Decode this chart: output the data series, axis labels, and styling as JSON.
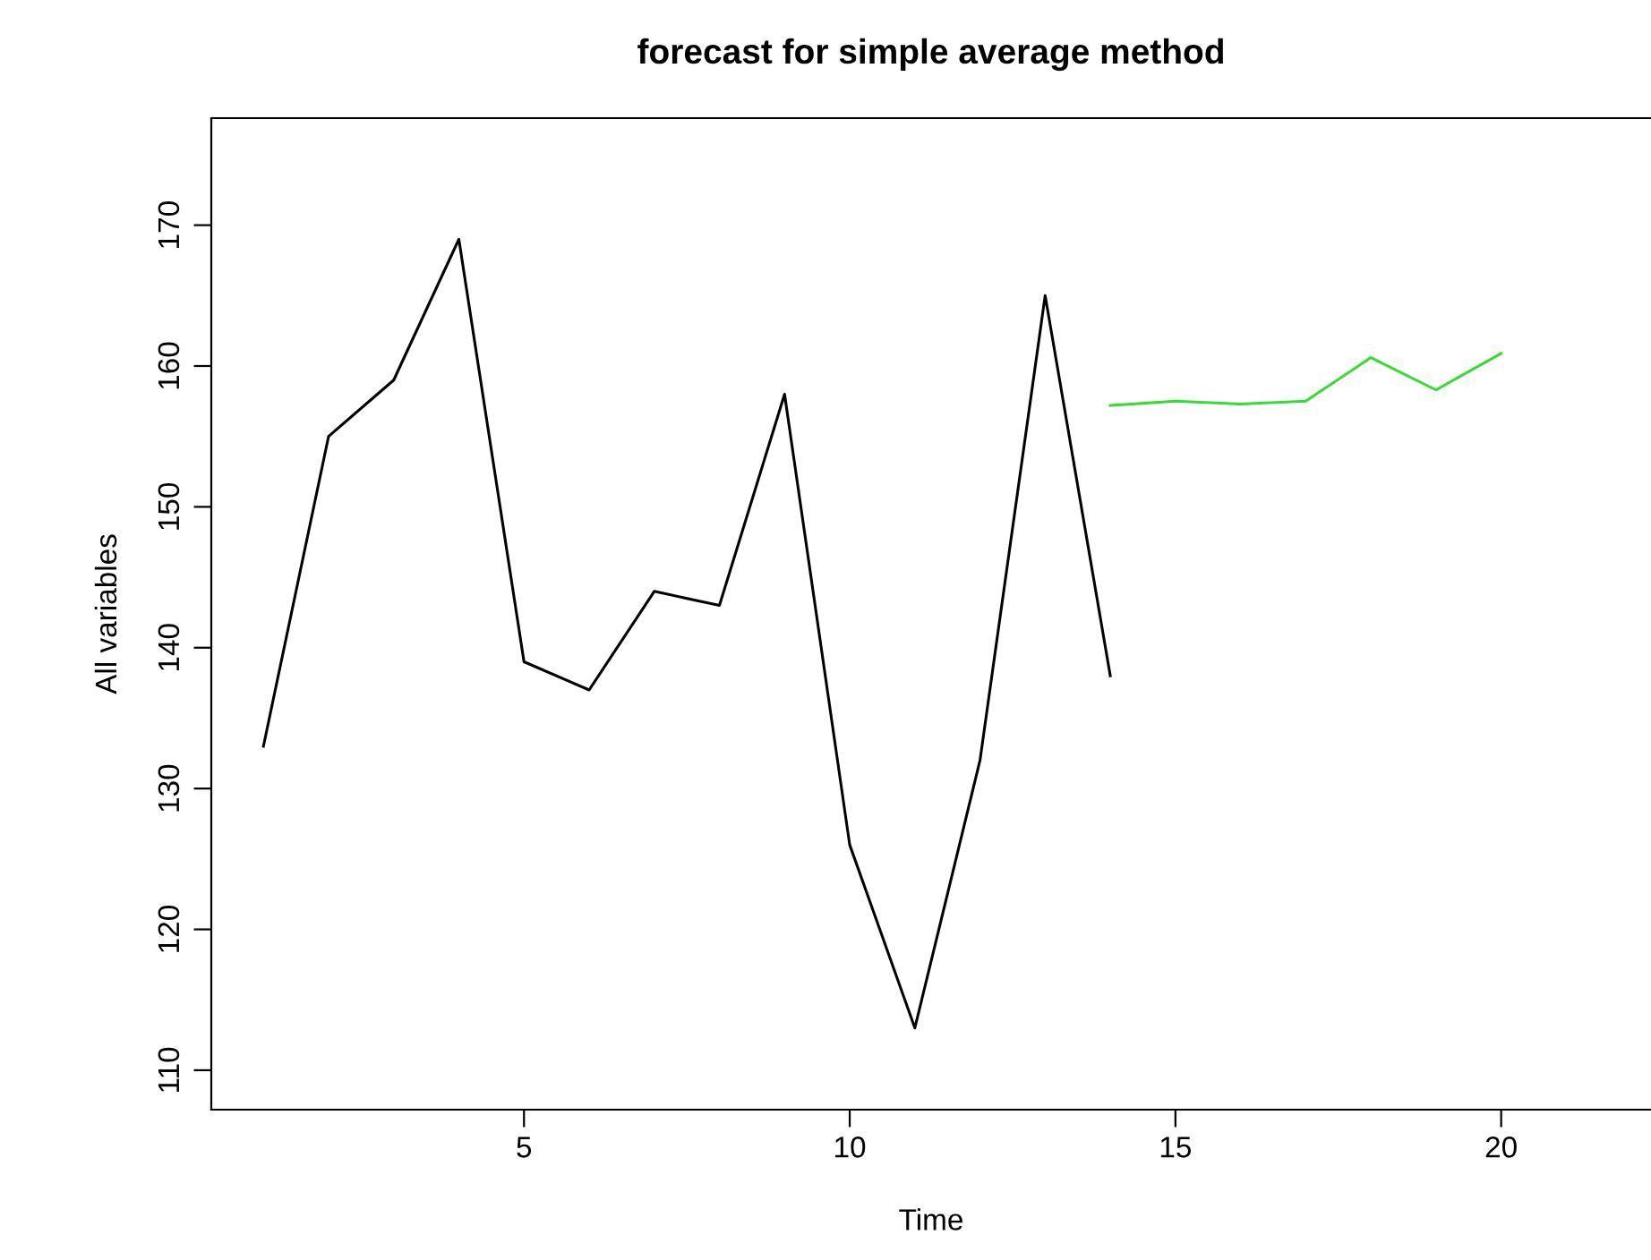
{
  "chart_data": {
    "type": "line",
    "title": "forecast for simple average method",
    "xlabel": "Time",
    "ylabel": "All variables",
    "series": [
      {
        "color": "#000000",
        "x": [
          1,
          2,
          3,
          4,
          5,
          6,
          7,
          8,
          9,
          10,
          11,
          12,
          13,
          14
        ],
        "values": [
          133,
          155,
          159,
          169,
          139,
          137,
          144,
          143,
          158,
          126,
          113,
          132,
          165,
          138
        ]
      },
      {
        "color": "#33dd33",
        "x": [
          14,
          15,
          16,
          17,
          18,
          19,
          20
        ],
        "values": [
          157.2,
          157.5,
          157.3,
          157.5,
          160.6,
          158.3,
          160.9
        ]
      }
    ],
    "xlim": [
      0.2,
      22.3
    ],
    "ylim": [
      107.2,
      177.6
    ],
    "xticks": [
      5,
      10,
      15,
      20
    ],
    "yticks": [
      110,
      120,
      130,
      140,
      150,
      160,
      170
    ],
    "grid": false,
    "legend": false,
    "marker": "none",
    "line_style": "solid"
  }
}
